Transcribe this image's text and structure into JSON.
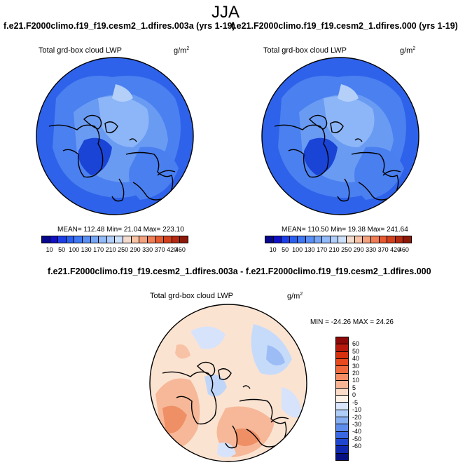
{
  "title": "JJA",
  "panels": [
    {
      "title": "f.e21.F2000climo.f19_f19.cesm2_1.dfires.003a (yrs 1-19)",
      "variable": "Total grd-box cloud LWP",
      "units": "g/m",
      "units_exp": "2",
      "stats": "MEAN= 112.48  Min=  21.04  Max= 223.10"
    },
    {
      "title": "f.e21.F2000climo.f19_f19.cesm2_1.dfires.000 (yrs 1-19)",
      "variable": "Total grd-box cloud LWP",
      "units": "g/m",
      "units_exp": "2",
      "stats": "MEAN= 110.50  Min=  19.38  Max= 241.64"
    }
  ],
  "abs_colorbar": {
    "ticks": [
      "10",
      "50",
      "100",
      "130",
      "170",
      "210",
      "250",
      "290",
      "330",
      "370",
      "420",
      "460"
    ],
    "colors": [
      "#08088c",
      "#1010c8",
      "#1f3fe6",
      "#2b5ff0",
      "#3f78f2",
      "#5a8ff4",
      "#76a5f6",
      "#92baf8",
      "#b0cef9",
      "#ccdffb",
      "#f3dccd",
      "#f7c2a6",
      "#f4a17e",
      "#ef7d56",
      "#e65a32",
      "#d2401e",
      "#b52a12",
      "#8c1a0a"
    ]
  },
  "diff_panel": {
    "title": "f.e21.F2000climo.f19_f19.cesm2_1.dfires.003a - f.e21.F2000climo.f19_f19.cesm2_1.dfires.000",
    "variable": "Total grd-box cloud LWP",
    "units": "g/m",
    "units_exp": "2",
    "stats": "MIN = -24.26 MAX =  24.26"
  },
  "diff_colorbar": {
    "ticks": [
      "60",
      "50",
      "40",
      "30",
      "20",
      "10",
      "5",
      "0",
      "-5",
      "-10",
      "-20",
      "-30",
      "-40",
      "-50",
      "-60"
    ],
    "colors": [
      "#8c0a0a",
      "#b81a0e",
      "#d6300e",
      "#e84a1e",
      "#f06a3e",
      "#f58e66",
      "#f8b596",
      "#fbdcc9",
      "#fdf2e8",
      "#d9e6fb",
      "#b0cdf8",
      "#86aef2",
      "#5e8cec",
      "#3a68e2",
      "#1f46d0",
      "#1028b0",
      "#061080"
    ]
  }
}
